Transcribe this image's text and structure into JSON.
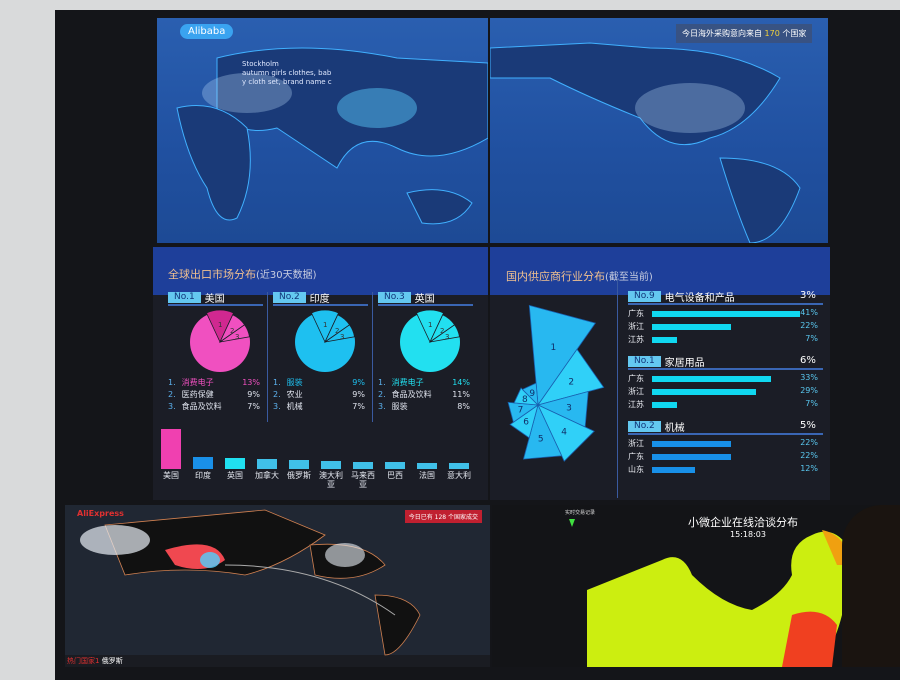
{
  "top": {
    "brand": "Alibaba",
    "note_prefix": "今日海外采购意向来自",
    "note_count": "170",
    "note_suffix": "个国家",
    "city_lines": [
      "Stockholm",
      "autumn girls clothes, bab",
      "y cloth set, brand name c"
    ]
  },
  "export": {
    "title": "全球出口市场分布",
    "subtitle": "(近30天数据)",
    "markets": [
      {
        "rank": "No.1",
        "country": "美国",
        "color": "#f050c0",
        "items": [
          {
            "i": "1.",
            "name": "消费电子",
            "pct": "13%"
          },
          {
            "i": "2.",
            "name": "医药保健",
            "pct": "9%"
          },
          {
            "i": "3.",
            "name": "食品及饮料",
            "pct": "7%"
          }
        ]
      },
      {
        "rank": "No.2",
        "country": "印度",
        "color": "#1ec0f0",
        "items": [
          {
            "i": "1.",
            "name": "服装",
            "pct": "9%"
          },
          {
            "i": "2.",
            "name": "农业",
            "pct": "9%"
          },
          {
            "i": "3.",
            "name": "机械",
            "pct": "7%"
          }
        ]
      },
      {
        "rank": "No.3",
        "country": "英国",
        "color": "#22e0f0",
        "items": [
          {
            "i": "1.",
            "name": "消费电子",
            "pct": "14%"
          },
          {
            "i": "2.",
            "name": "食品及饮料",
            "pct": "11%"
          },
          {
            "i": "3.",
            "name": "服装",
            "pct": "8%"
          }
        ]
      }
    ],
    "chart_data": {
      "type": "bar",
      "categories": [
        "美国",
        "印度",
        "英国",
        "加拿大",
        "俄罗斯",
        "澳大利亚",
        "马来西亚",
        "巴西",
        "法国",
        "意大利"
      ],
      "values_relative": [
        100,
        30,
        28,
        24,
        22,
        20,
        18,
        17,
        14,
        14
      ],
      "colors": [
        "#f040b0",
        "#1a90e8",
        "#20e0f0",
        "#40c0e8",
        "#40c0e8",
        "#40c0e8",
        "#40c0e8",
        "#40c0e8",
        "#40c0e8",
        "#40c0e8"
      ]
    }
  },
  "supplier": {
    "title": "国内供应商行业分布",
    "subtitle": "(截至当前)",
    "rose": {
      "labels": [
        "1",
        "2",
        "3",
        "4",
        "5",
        "6",
        "7",
        "8",
        "9"
      ],
      "relative_size": [
        100,
        68,
        52,
        62,
        56,
        34,
        30,
        24,
        22
      ]
    },
    "groups": [
      {
        "rank": "No.9",
        "name": "电气设备和产品",
        "share": "3%",
        "rows": [
          {
            "p": "广东",
            "v": 41,
            "t": "41%"
          },
          {
            "p": "浙江",
            "v": 22,
            "t": "22%"
          },
          {
            "p": "江苏",
            "v": 7,
            "t": "7%"
          }
        ]
      },
      {
        "rank": "No.1",
        "name": "家居用品",
        "share": "6%",
        "rows": [
          {
            "p": "广东",
            "v": 33,
            "t": "33%"
          },
          {
            "p": "浙江",
            "v": 29,
            "t": "29%"
          },
          {
            "p": "江苏",
            "v": 7,
            "t": "7%"
          }
        ]
      },
      {
        "rank": "No.2",
        "name": "机械",
        "share": "5%",
        "rows": [
          {
            "p": "浙江",
            "v": 22,
            "t": "22%"
          },
          {
            "p": "广东",
            "v": 22,
            "t": "22%"
          },
          {
            "p": "山东",
            "v": 12,
            "t": "12%"
          }
        ]
      }
    ]
  },
  "bottom_left": {
    "brand": "AliExpress",
    "note": "今日已有 128 个国家成交",
    "hot": "热门国家1",
    "hot_country": "俄罗斯"
  },
  "bottom_right": {
    "legend": "实时交易记录",
    "title": "小微企业在线洽谈分布",
    "time": "15:18:03"
  }
}
